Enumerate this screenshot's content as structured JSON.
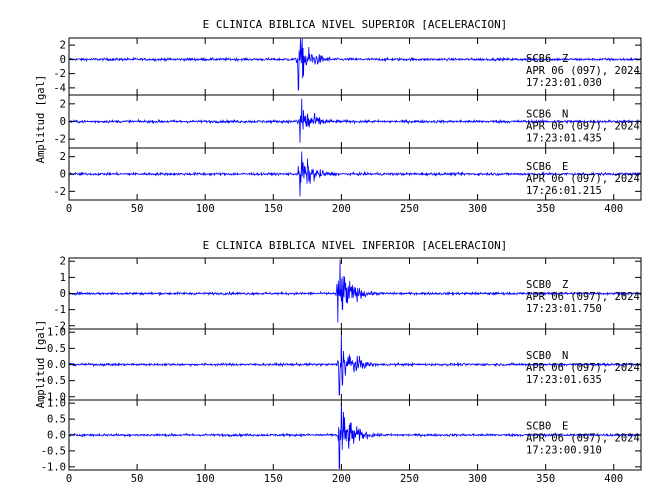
{
  "chart_data": [
    {
      "type": "line",
      "title": "E CLINICA BIBLICA NIVEL SUPERIOR [ACELERACION]",
      "ylabel": "Amplitud [gal]",
      "xlabel": "",
      "xlim": [
        0,
        420
      ],
      "xticks": [
        0,
        50,
        100,
        150,
        200,
        250,
        300,
        350,
        400
      ],
      "grid": false,
      "line_color": "#0000ff",
      "panels": [
        {
          "station": "SCB6",
          "component": "Z",
          "date": "APR 06 (097), 2024",
          "time": "17:23:01.030",
          "ylim": [
            -5,
            3
          ],
          "yticks": [
            "-4",
            "-2",
            "0",
            "2"
          ],
          "yticks_values": [
            -4,
            -2,
            0,
            2
          ],
          "onset": 167,
          "peak_amplitude": [
            2.9,
            -4.3
          ],
          "noise": 0.12
        },
        {
          "station": "SCB6",
          "component": "N",
          "date": "APR 06 (097), 2024",
          "time": "17:23:01.435",
          "ylim": [
            -3,
            3
          ],
          "yticks": [
            "-2",
            "0",
            "2"
          ],
          "yticks_values": [
            -2,
            0,
            2
          ],
          "onset": 168,
          "peak_amplitude": [
            2.6,
            -2.4
          ],
          "noise": 0.1
        },
        {
          "station": "SCB6",
          "component": "E",
          "date": "APR 06 (097), 2024",
          "time": "17:26:01.215",
          "ylim": [
            -3,
            3
          ],
          "yticks": [
            "-2",
            "0",
            "2"
          ],
          "yticks_values": [
            -2,
            0,
            2
          ],
          "onset": 168,
          "peak_amplitude": [
            2.6,
            -2.6
          ],
          "noise": 0.1
        }
      ]
    },
    {
      "type": "line",
      "title": "E CLINICA BIBLICA NIVEL INFERIOR [ACELERACION]",
      "ylabel": "Amplitud [gal]",
      "xlabel": "",
      "xlim": [
        0,
        420
      ],
      "xticks": [
        0,
        50,
        100,
        150,
        200,
        250,
        300,
        350,
        400
      ],
      "grid": false,
      "line_color": "#0000ff",
      "panels": [
        {
          "station": "SCB0",
          "component": "Z",
          "date": "APR 06 (097), 2024",
          "time": "17:23:01.750",
          "ylim": [
            -2.2,
            2.2
          ],
          "yticks": [
            "-2",
            "-1",
            "0",
            "1",
            "2"
          ],
          "yticks_values": [
            -2,
            -1,
            0,
            1,
            2
          ],
          "onset": 196,
          "peak_amplitude": [
            2.1,
            -1.8
          ],
          "noise": 0.05
        },
        {
          "station": "SCB0",
          "component": "N",
          "date": "APR 06 (097), 2024",
          "time": "17:23:01.635",
          "ylim": [
            -1.1,
            1.1
          ],
          "yticks": [
            "-1.0",
            "-0.5",
            "0.0",
            "0.5",
            "1.0"
          ],
          "yticks_values": [
            -1,
            -0.5,
            0,
            0.5,
            1
          ],
          "onset": 197,
          "peak_amplitude": [
            1.0,
            -0.95
          ],
          "noise": 0.025
        },
        {
          "station": "SCB0",
          "component": "E",
          "date": "APR 06 (097), 2024",
          "time": "17:23:00.910",
          "ylim": [
            -1.1,
            1.1
          ],
          "yticks": [
            "-1.0",
            "-0.5",
            "0.0",
            "0.5",
            "1.0"
          ],
          "yticks_values": [
            -1,
            -0.5,
            0,
            0.5,
            1
          ],
          "onset": 197,
          "peak_amplitude": [
            1.0,
            -1.05
          ],
          "noise": 0.025
        }
      ]
    }
  ]
}
